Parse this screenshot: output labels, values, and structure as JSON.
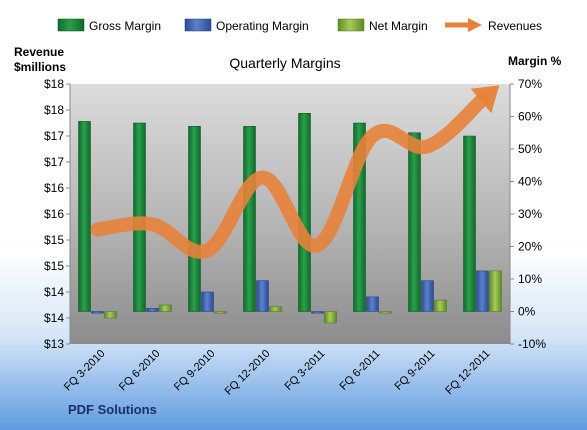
{
  "company": "PDF Solutions",
  "chart_data": {
    "type": "bar",
    "title": "Quarterly Margins",
    "left_axis_label": [
      "Revenue",
      "$millions"
    ],
    "right_axis_label": "Margin %",
    "categories": [
      "FQ 3-2010",
      "FQ 6-2010",
      "FQ 9-2010",
      "FQ 12-2010",
      "FQ 3-2011",
      "FQ 6-2011",
      "FQ 9-2011",
      "FQ 12-2011"
    ],
    "left_axis": {
      "min": 13.0,
      "max": 18.0,
      "step": 0.5,
      "tick_labels": [
        "$13",
        "$14",
        "$14",
        "$15",
        "$15",
        "$16",
        "$16",
        "$17",
        "$17",
        "$18",
        "$18"
      ]
    },
    "right_axis": {
      "min": -10,
      "max": 70,
      "step": 10,
      "tick_labels": [
        "-10%",
        "0%",
        "10%",
        "20%",
        "30%",
        "40%",
        "50%",
        "60%",
        "70%"
      ]
    },
    "series": [
      {
        "name": "Gross Margin",
        "axis": "right",
        "kind": "bar",
        "color": "#1e8a3a",
        "values": [
          58.5,
          58.0,
          57.0,
          57.0,
          61.0,
          58.0,
          55.0,
          54.0
        ]
      },
      {
        "name": "Operating Margin",
        "axis": "right",
        "kind": "bar",
        "color": "#3a62b0",
        "values": [
          -0.5,
          1.0,
          6.0,
          9.5,
          -0.5,
          4.5,
          9.5,
          12.5
        ]
      },
      {
        "name": "Net Margin",
        "axis": "right",
        "kind": "bar",
        "color": "#8ab43c",
        "values": [
          -2.0,
          2.0,
          -0.5,
          1.5,
          -3.5,
          -0.5,
          3.5,
          12.5
        ]
      },
      {
        "name": "Revenues",
        "axis": "left",
        "kind": "line",
        "color": "#e8823a",
        "values": [
          15.2,
          15.3,
          14.8,
          16.2,
          14.9,
          17.0,
          16.8,
          17.7
        ]
      }
    ],
    "legend_position": "top",
    "grid": false
  }
}
